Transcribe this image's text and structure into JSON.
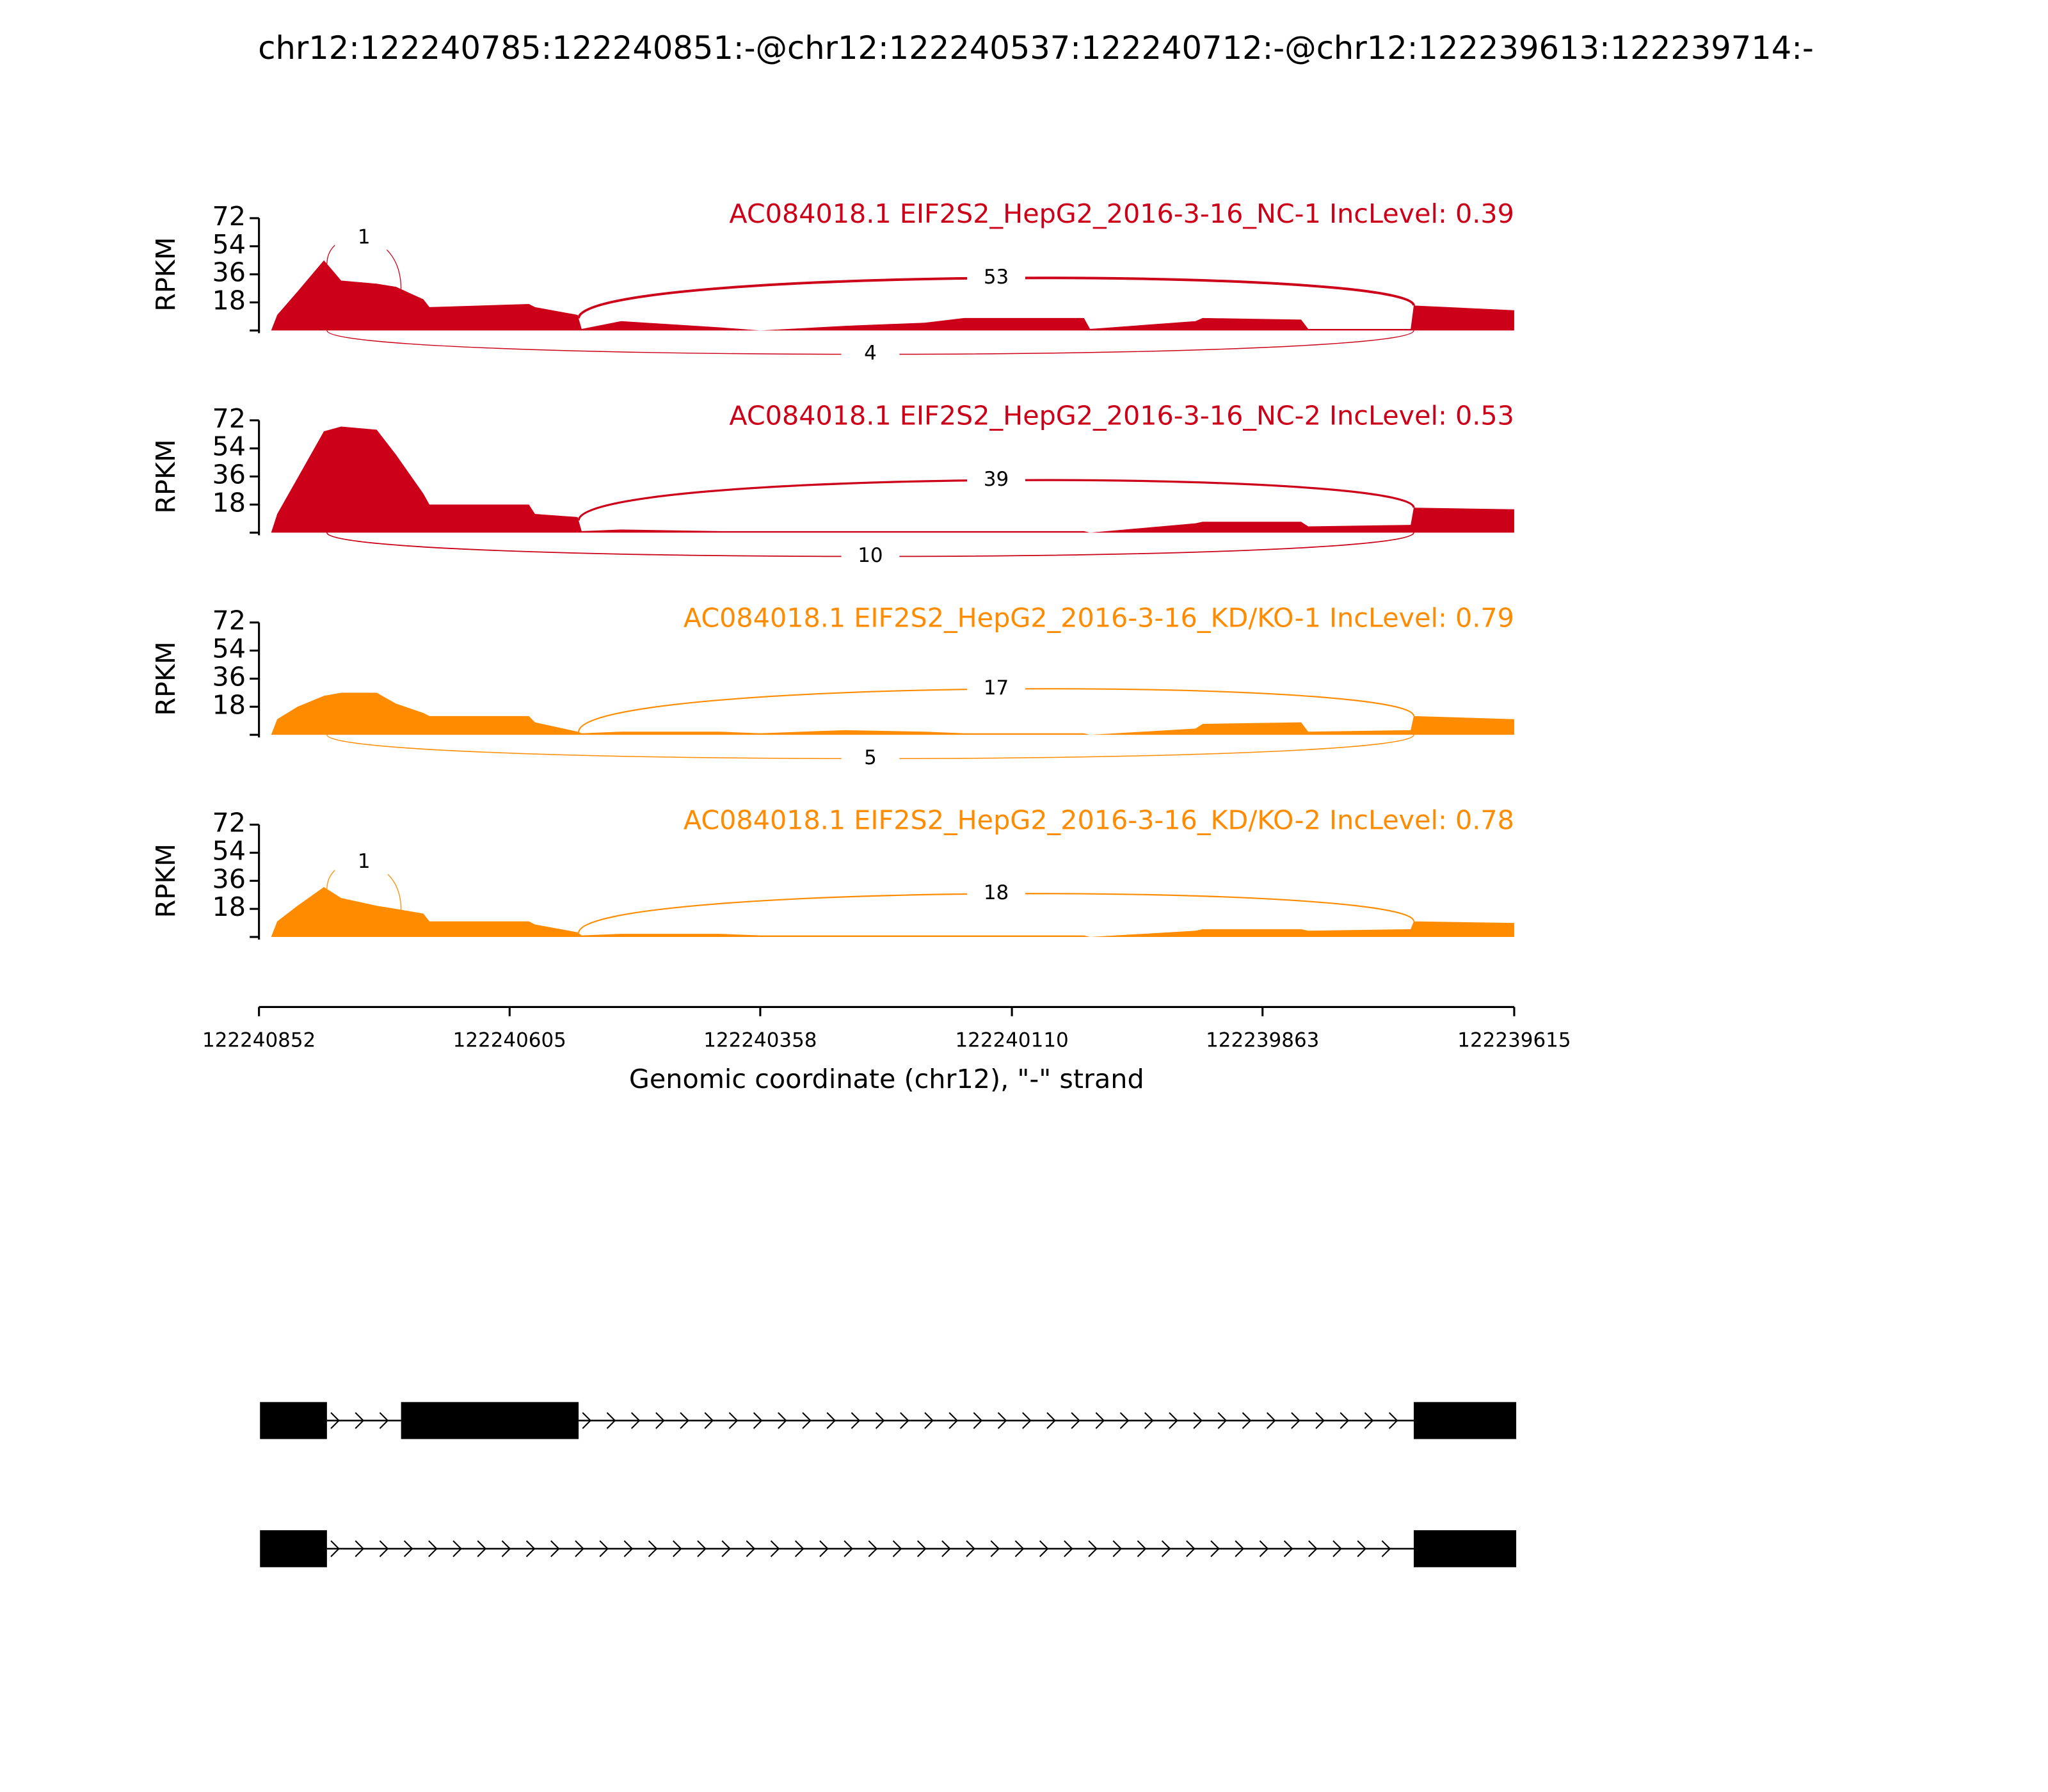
{
  "title": "chr12:122240785:122240851:-@chr12:122240537:122240712:-@chr12:122239613:122239714:-",
  "x_axis": {
    "label": "Genomic coordinate (chr12), \"-\" strand",
    "xlim": [
      122240852,
      122239615
    ],
    "xticks": [
      122240852,
      122240605,
      122240358,
      122240110,
      122239863,
      122239615
    ]
  },
  "chart_data": [
    {
      "type": "area",
      "title": "AC084018.1 EIF2S2_HepG2_2016-3-16_NC-1 IncLevel: 0.39",
      "ylabel": "RPKM",
      "color": "#cc0018",
      "ylim": [
        0,
        72
      ],
      "yticks": [
        18,
        36,
        54,
        72
      ],
      "x": [
        122240840,
        122240834,
        122240814,
        122240788,
        122240771,
        122240736,
        122240717,
        122240690,
        122240684,
        122240586,
        122240580,
        122240538,
        122240534,
        122240495,
        122240398,
        122240358,
        122240274,
        122240196,
        122240157,
        122240039,
        122240033,
        122239929,
        122239922,
        122239825,
        122239818,
        122239717,
        122239714,
        122239615
      ],
      "values": [
        0,
        10,
        25,
        45,
        32,
        30,
        28,
        20,
        15,
        17,
        15,
        10,
        1,
        6,
        2,
        0,
        3,
        5,
        8,
        8,
        1,
        6,
        8,
        7,
        1,
        1,
        16,
        13
      ],
      "junctions": [
        {
          "from": 122240785,
          "to": 122240712,
          "count": 1,
          "side": "above"
        },
        {
          "from": 122240537,
          "to": 122239714,
          "count": 53,
          "side": "above"
        },
        {
          "from": 122240785,
          "to": 122239714,
          "count": 4,
          "side": "below"
        }
      ]
    },
    {
      "type": "area",
      "title": "AC084018.1 EIF2S2_HepG2_2016-3-16_NC-2 IncLevel: 0.53",
      "ylabel": "RPKM",
      "color": "#cc0018",
      "ylim": [
        0,
        72
      ],
      "yticks": [
        18,
        36,
        54,
        72
      ],
      "x": [
        122240840,
        122240834,
        122240814,
        122240788,
        122240771,
        122240736,
        122240717,
        122240690,
        122240684,
        122240586,
        122240580,
        122240538,
        122240534,
        122240495,
        122240398,
        122240358,
        122240274,
        122240196,
        122240157,
        122240039,
        122240033,
        122239929,
        122239922,
        122239825,
        122239818,
        122239717,
        122239714,
        122239615
      ],
      "values": [
        0,
        12,
        35,
        65,
        68,
        66,
        50,
        25,
        18,
        18,
        12,
        10,
        1,
        2,
        1,
        1,
        1,
        1,
        1,
        1,
        0,
        6,
        7,
        7,
        4,
        5,
        16,
        15
      ],
      "junctions": [
        {
          "from": 122240537,
          "to": 122239714,
          "count": 39,
          "side": "above"
        },
        {
          "from": 122240785,
          "to": 122239714,
          "count": 10,
          "side": "below"
        }
      ]
    },
    {
      "type": "area",
      "title": "AC084018.1 EIF2S2_HepG2_2016-3-16_KD/KO-1 IncLevel: 0.79",
      "ylabel": "RPKM",
      "color": "#ff8c00",
      "ylim": [
        0,
        72
      ],
      "yticks": [
        18,
        36,
        54,
        72
      ],
      "x": [
        122240840,
        122240834,
        122240814,
        122240788,
        122240771,
        122240736,
        122240717,
        122240690,
        122240684,
        122240586,
        122240580,
        122240538,
        122240534,
        122240495,
        122240398,
        122240358,
        122240274,
        122240196,
        122240157,
        122240039,
        122240033,
        122239929,
        122239922,
        122239825,
        122239818,
        122239717,
        122239714,
        122239615
      ],
      "values": [
        0,
        10,
        18,
        25,
        27,
        27,
        20,
        14,
        12,
        12,
        8,
        2,
        1,
        2,
        2,
        1,
        3,
        2,
        1,
        1,
        0,
        4,
        7,
        8,
        2,
        3,
        12,
        10
      ],
      "junctions": [
        {
          "from": 122240537,
          "to": 122239714,
          "count": 17,
          "side": "above"
        },
        {
          "from": 122240785,
          "to": 122239714,
          "count": 5,
          "side": "below"
        }
      ]
    },
    {
      "type": "area",
      "title": "AC084018.1 EIF2S2_HepG2_2016-3-16_KD/KO-2 IncLevel: 0.78",
      "ylabel": "RPKM",
      "color": "#ff8c00",
      "ylim": [
        0,
        72
      ],
      "yticks": [
        18,
        36,
        54,
        72
      ],
      "x": [
        122240840,
        122240834,
        122240814,
        122240788,
        122240771,
        122240736,
        122240717,
        122240690,
        122240684,
        122240586,
        122240580,
        122240538,
        122240534,
        122240495,
        122240398,
        122240358,
        122240274,
        122240196,
        122240157,
        122240039,
        122240033,
        122239929,
        122239922,
        122239825,
        122239818,
        122239717,
        122239714,
        122239615
      ],
      "values": [
        0,
        10,
        20,
        32,
        25,
        20,
        18,
        15,
        10,
        10,
        8,
        3,
        1,
        2,
        2,
        1,
        1,
        1,
        1,
        1,
        0,
        4,
        5,
        5,
        4,
        5,
        10,
        9
      ],
      "junctions": [
        {
          "from": 122240785,
          "to": 122240712,
          "count": 1,
          "side": "above"
        },
        {
          "from": 122240537,
          "to": 122239714,
          "count": 18,
          "side": "above"
        }
      ]
    }
  ],
  "transcripts": [
    {
      "exons": [
        [
          122240851,
          122240785
        ],
        [
          122240712,
          122240537
        ],
        [
          122239714,
          122239613
        ]
      ]
    },
    {
      "exons": [
        [
          122240851,
          122240785
        ],
        [
          122239714,
          122239613
        ]
      ]
    }
  ]
}
